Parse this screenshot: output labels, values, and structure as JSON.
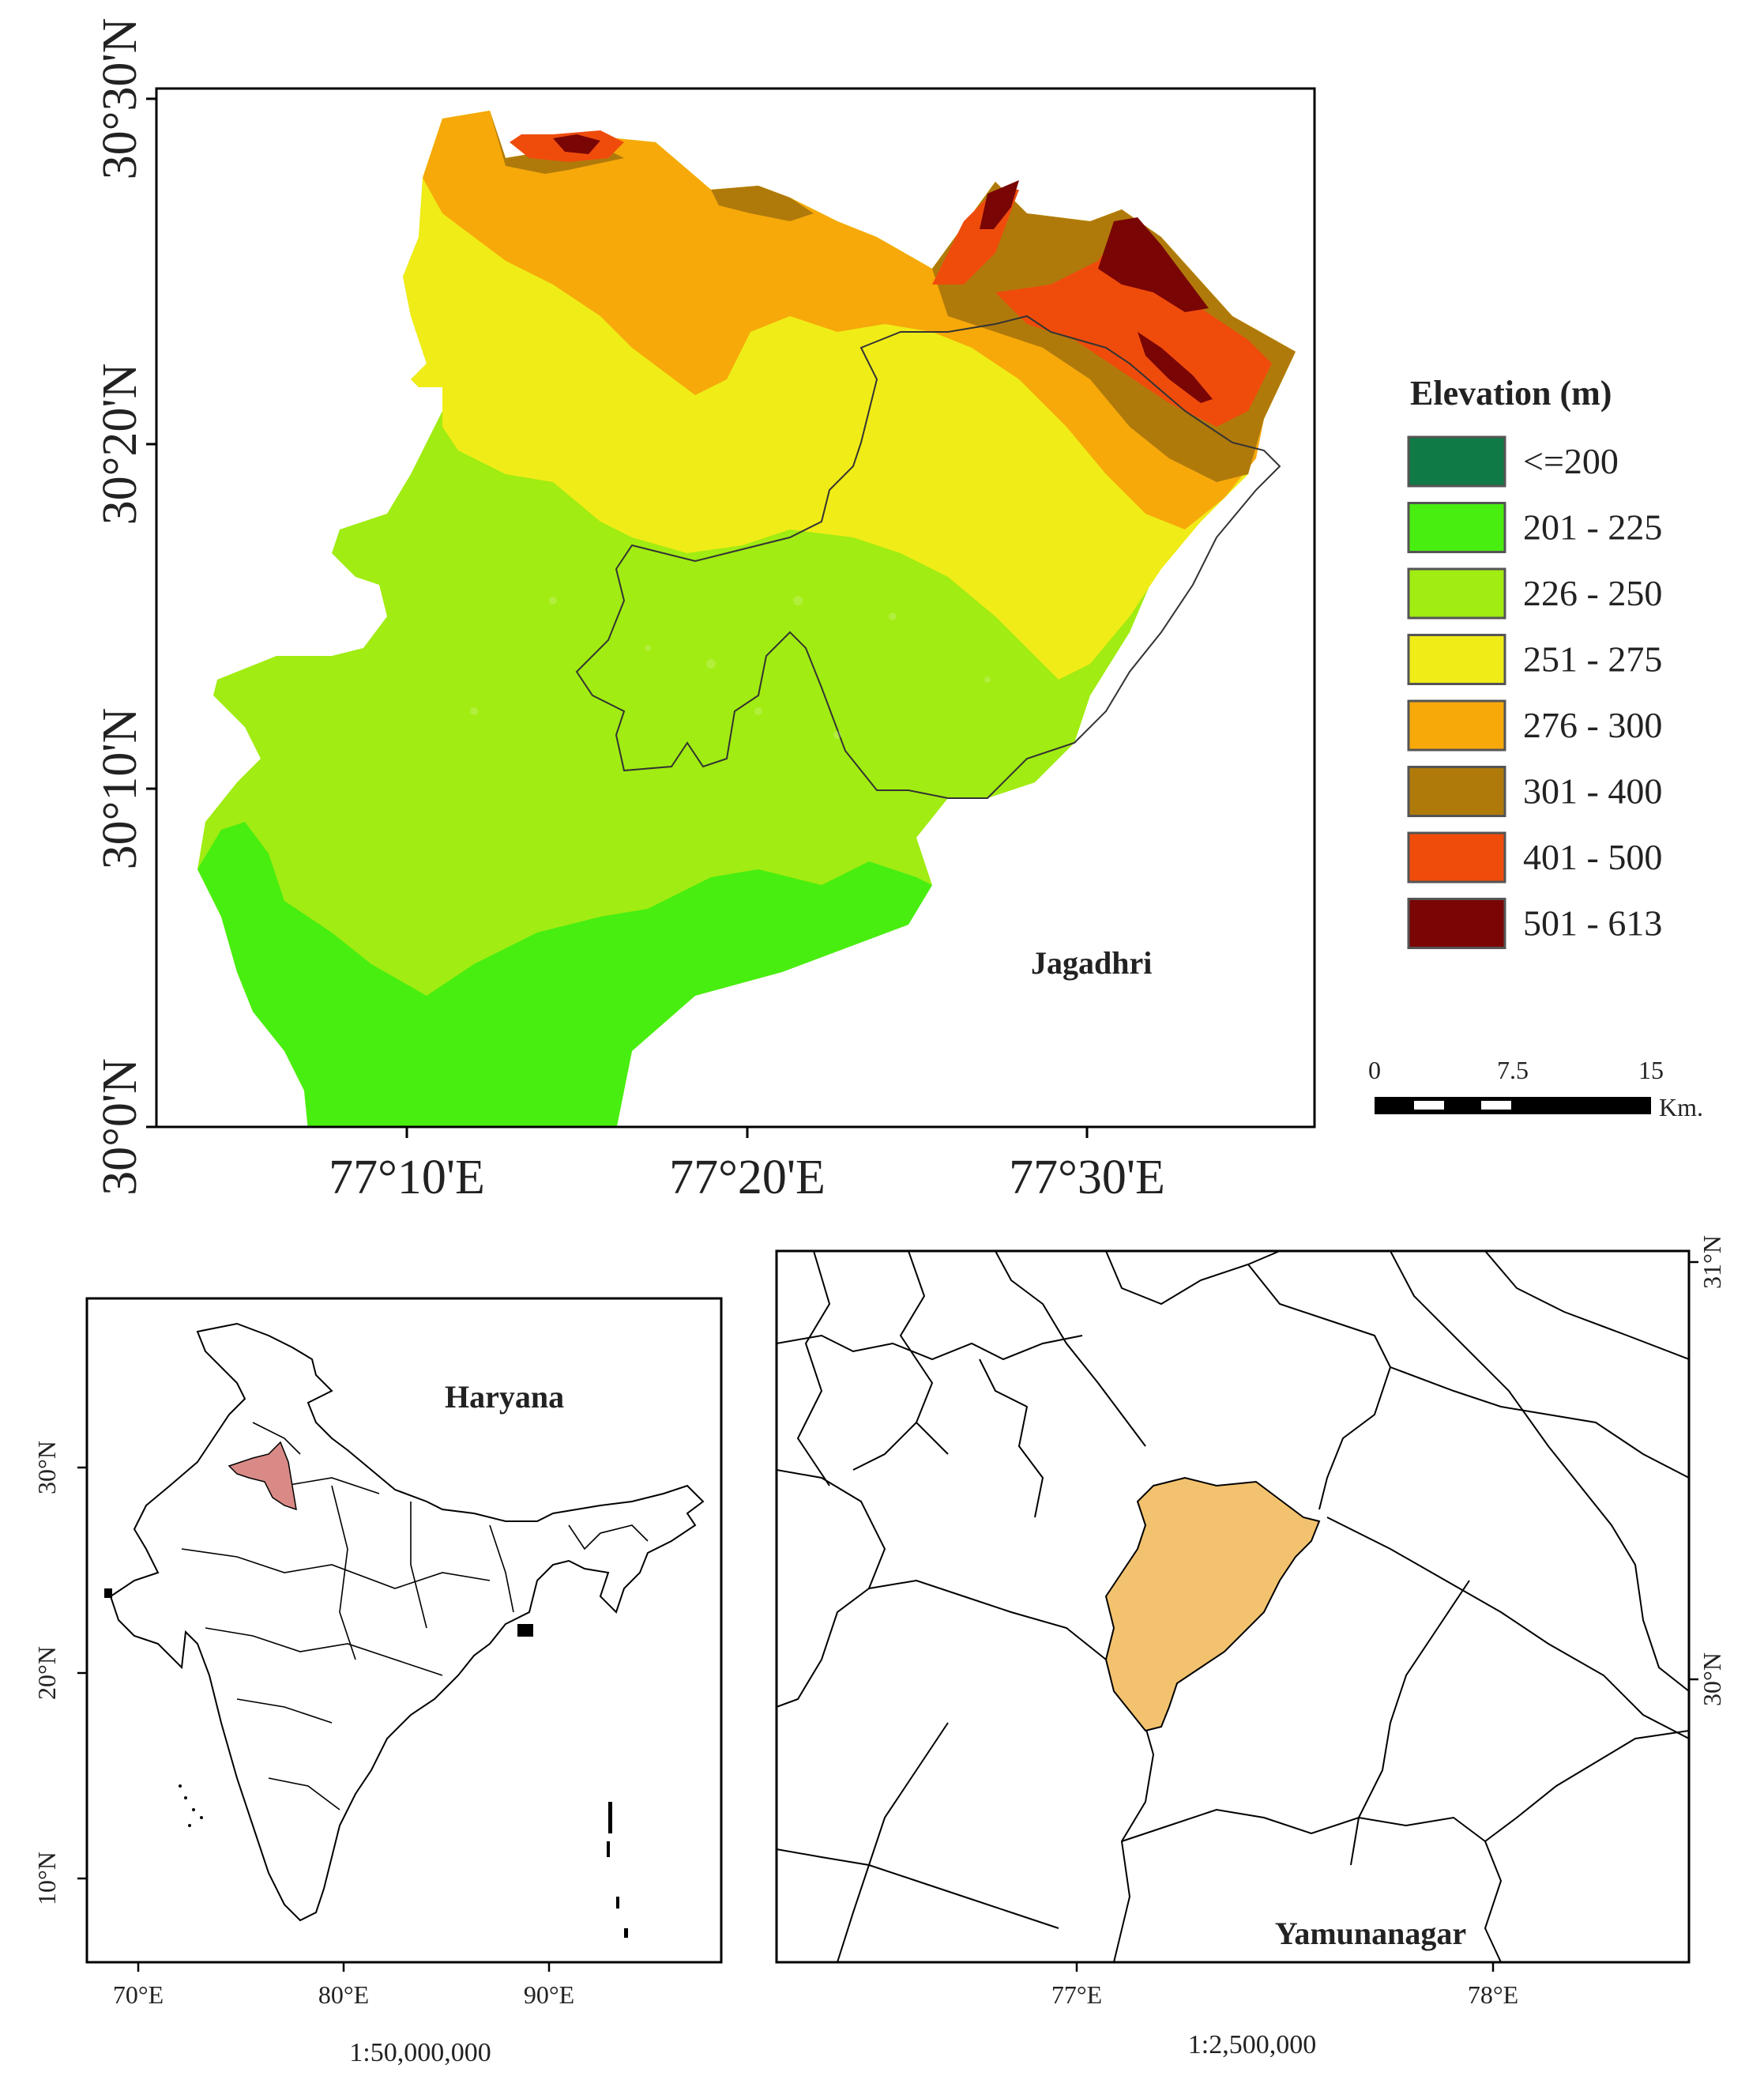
{
  "main_map": {
    "place_label": "Jagadhri",
    "lat_labels": [
      "30°30'N",
      "30°20'N",
      "30°10'N",
      "30°0'N"
    ],
    "lon_labels": [
      "77°10'E",
      "77°20'E",
      "77°30'E"
    ]
  },
  "legend": {
    "title": "Elevation (m)",
    "items": [
      {
        "label": "<=200",
        "color": "#0f7a45"
      },
      {
        "label": "201 - 225",
        "color": "#48ee10"
      },
      {
        "label": "226 - 250",
        "color": "#a1ec12"
      },
      {
        "label": "251 - 275",
        "color": "#f0ec17"
      },
      {
        "label": "276 - 300",
        "color": "#f7a90a"
      },
      {
        "label": "301 - 400",
        "color": "#b07a0b"
      },
      {
        "label": "401 - 500",
        "color": "#ef4c0c"
      },
      {
        "label": "501 - 613",
        "color": "#7a0505"
      }
    ]
  },
  "scale_bar": {
    "ticks": [
      "0",
      "7.5",
      "15"
    ],
    "unit": "Km."
  },
  "india_map": {
    "label": "Haryana",
    "highlight_color": "#d98a86",
    "lat_labels": [
      "30°N",
      "20°N",
      "10°N"
    ],
    "lon_labels": [
      "70°E",
      "80°E",
      "90°E"
    ],
    "scale": "1:50,000,000"
  },
  "district_map": {
    "label": "Yamunanagar",
    "highlight_color": "#f2c26e",
    "lat_labels": [
      "31°N",
      "30°N"
    ],
    "lon_labels": [
      "77°E",
      "78°E"
    ],
    "scale": "1:2,500,000"
  }
}
